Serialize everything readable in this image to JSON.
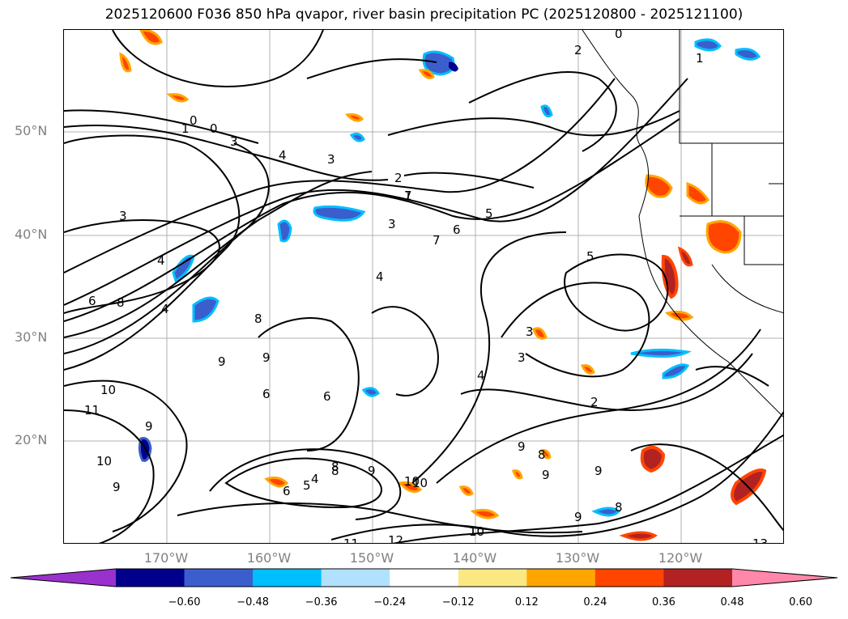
{
  "title": "2025120600 F036 850 hPa qvapor, river basin precipitation PC (2025120800 - 2025121100)",
  "lat_labels": [
    "50°N",
    "40°N",
    "30°N",
    "20°N"
  ],
  "lon_labels": [
    "170°W",
    "160°W",
    "150°W",
    "140°W",
    "130°W",
    "120°W"
  ],
  "colorbar": {
    "colors": [
      "#9932cc",
      "#00008b",
      "#3a5fcd",
      "#00bfff",
      "#b0e2ff",
      "#ffffff",
      "#fce883",
      "#ffa500",
      "#ff4500",
      "#b22222",
      "#ff88aa"
    ],
    "ticks": [
      "−0.60",
      "−0.48",
      "−0.36",
      "−0.24",
      "−0.12",
      "0.12",
      "0.24",
      "0.36",
      "0.48",
      "0.60"
    ]
  },
  "contour_labels": [
    "0",
    "1",
    "0",
    "3",
    "4",
    "3",
    "2",
    "1",
    "3",
    "3",
    "5",
    "6",
    "7",
    "4",
    "4",
    "6",
    "8",
    "5",
    "4",
    "8",
    "9",
    "3",
    "9",
    "6",
    "6",
    "4",
    "2",
    "11",
    "10",
    "9",
    "8",
    "10",
    "9",
    "10",
    "6",
    "5",
    "4",
    "8",
    "9",
    "10",
    "9",
    "10",
    "11",
    "12",
    "10",
    "9",
    "8",
    "9",
    "8",
    "9",
    "13",
    "1",
    "2",
    "0",
    "3",
    "7"
  ]
}
